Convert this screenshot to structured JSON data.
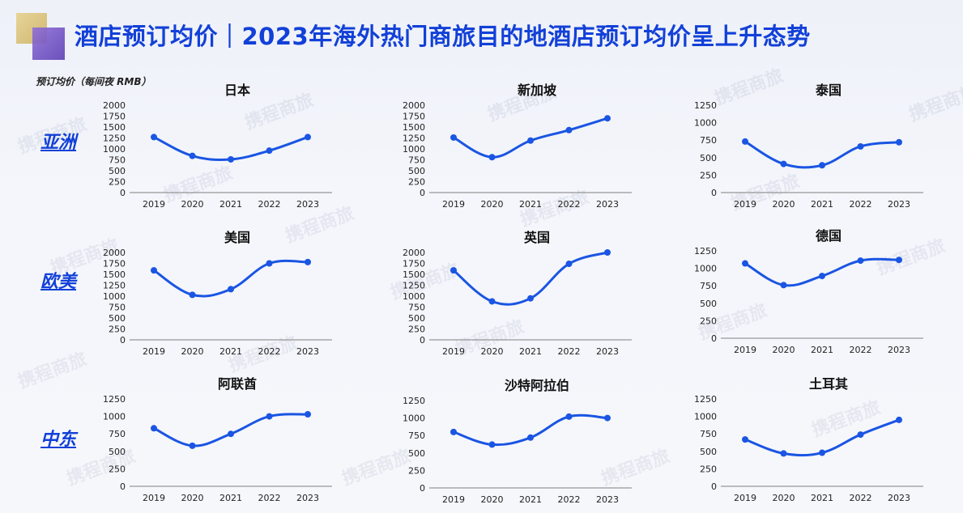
{
  "header": {
    "title": "酒店预订均价｜2023年海外热门商旅目的地酒店预订均价呈上升态势",
    "y_axis_note": "预订均价（每间夜 RMB）"
  },
  "watermark": {
    "text": "携程商旅"
  },
  "regions": [
    {
      "key": "asia",
      "label": "亚洲"
    },
    {
      "key": "americas_europe",
      "label": "欧美"
    },
    {
      "key": "middle_east",
      "label": "中东"
    }
  ],
  "colors": {
    "title": "#1240d8",
    "line": "#1a55e3",
    "axis": "#7f7f7f"
  },
  "chart_data": [
    {
      "type": "line",
      "title": "日本",
      "categories": [
        "2019",
        "2020",
        "2021",
        "2022",
        "2023"
      ],
      "values": [
        1270,
        840,
        760,
        960,
        1270
      ],
      "ylim": [
        0,
        2000
      ],
      "yticks": [
        0,
        250,
        500,
        750,
        1000,
        1250,
        1500,
        1750,
        2000
      ],
      "grid": false
    },
    {
      "type": "line",
      "title": "新加坡",
      "categories": [
        "2019",
        "2020",
        "2021",
        "2022",
        "2023"
      ],
      "values": [
        1260,
        810,
        1190,
        1430,
        1700
      ],
      "ylim": [
        0,
        2000
      ],
      "yticks": [
        0,
        250,
        500,
        750,
        1000,
        1250,
        1500,
        1750,
        2000
      ],
      "grid": false
    },
    {
      "type": "line",
      "title": "泰国",
      "categories": [
        "2019",
        "2020",
        "2021",
        "2022",
        "2023"
      ],
      "values": [
        730,
        410,
        390,
        660,
        720
      ],
      "ylim": [
        0,
        1250
      ],
      "yticks": [
        0,
        250,
        500,
        750,
        1000,
        1250
      ],
      "grid": false
    },
    {
      "type": "line",
      "title": "美国",
      "categories": [
        "2019",
        "2020",
        "2021",
        "2022",
        "2023"
      ],
      "values": [
        1590,
        1030,
        1160,
        1750,
        1780
      ],
      "ylim": [
        0,
        2000
      ],
      "yticks": [
        0,
        250,
        500,
        750,
        1000,
        1250,
        1500,
        1750,
        2000
      ],
      "grid": false
    },
    {
      "type": "line",
      "title": "英国",
      "categories": [
        "2019",
        "2020",
        "2021",
        "2022",
        "2023"
      ],
      "values": [
        1590,
        880,
        950,
        1740,
        2000
      ],
      "ylim": [
        0,
        2000
      ],
      "yticks": [
        0,
        250,
        500,
        750,
        1000,
        1250,
        1500,
        1750,
        2000
      ],
      "grid": false
    },
    {
      "type": "line",
      "title": "德国",
      "categories": [
        "2019",
        "2020",
        "2021",
        "2022",
        "2023"
      ],
      "values": [
        1070,
        760,
        890,
        1110,
        1120
      ],
      "ylim": [
        0,
        1250
      ],
      "yticks": [
        0,
        250,
        500,
        750,
        1000,
        1250
      ],
      "grid": false
    },
    {
      "type": "line",
      "title": "阿联酋",
      "categories": [
        "2019",
        "2020",
        "2021",
        "2022",
        "2023"
      ],
      "values": [
        830,
        580,
        750,
        1000,
        1030
      ],
      "ylim": [
        0,
        1250
      ],
      "yticks": [
        0,
        250,
        500,
        750,
        1000,
        1250
      ],
      "grid": false
    },
    {
      "type": "line",
      "title": "沙特阿拉伯",
      "categories": [
        "2019",
        "2020",
        "2021",
        "2022",
        "2023"
      ],
      "values": [
        800,
        620,
        720,
        1020,
        1000
      ],
      "ylim": [
        0,
        1250
      ],
      "yticks": [
        0,
        250,
        500,
        750,
        1000,
        1250
      ],
      "grid": false
    },
    {
      "type": "line",
      "title": "土耳其",
      "categories": [
        "2019",
        "2020",
        "2021",
        "2022",
        "2023"
      ],
      "values": [
        670,
        470,
        480,
        740,
        950
      ],
      "ylim": [
        0,
        1250
      ],
      "yticks": [
        0,
        250,
        500,
        750,
        1000,
        1250
      ],
      "grid": false
    }
  ]
}
